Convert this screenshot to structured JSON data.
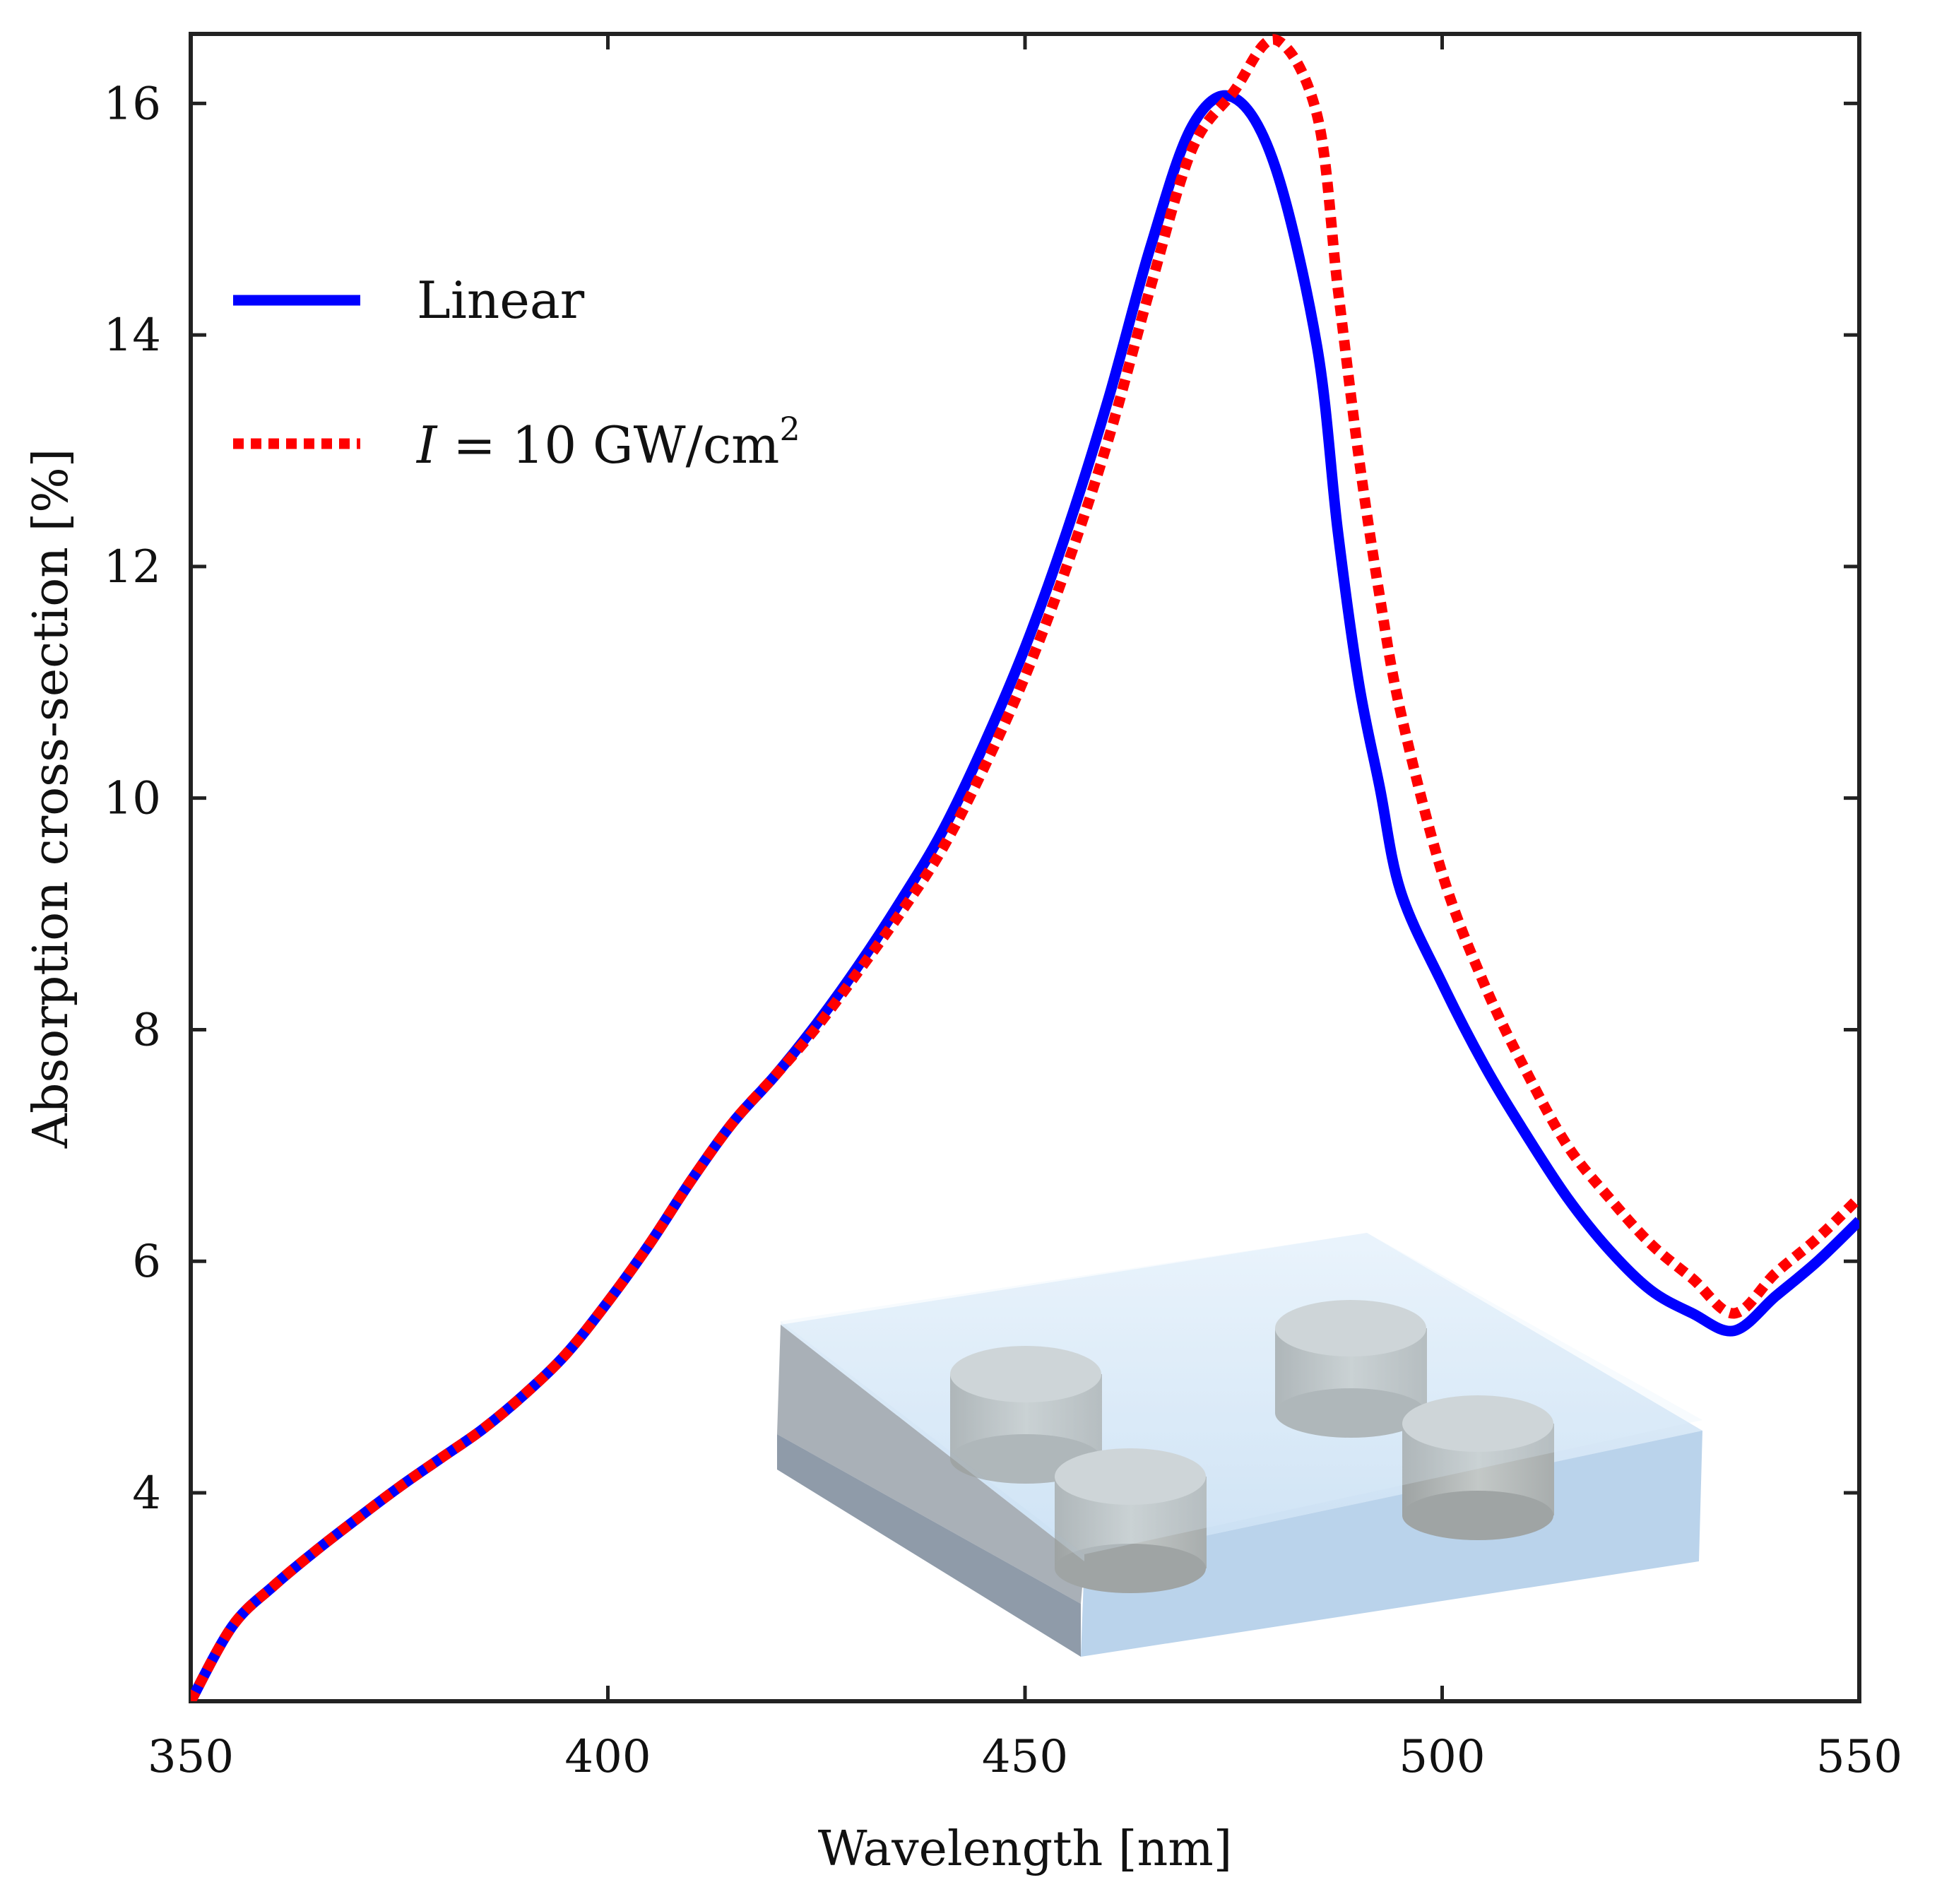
{
  "chart_data": {
    "type": "line",
    "title": "",
    "xlabel": "Wavelength [nm]",
    "ylabel": "Absorption cross-section [%]",
    "xlim": [
      350,
      550
    ],
    "ylim": [
      2.2,
      16.6
    ],
    "xticks": [
      350,
      400,
      450,
      500,
      550
    ],
    "yticks": [
      4,
      6,
      8,
      10,
      12,
      14,
      16
    ],
    "xtick_labels": [
      "350",
      "400",
      "450",
      "500",
      "550"
    ],
    "ytick_labels": [
      "4",
      "6",
      "8",
      "10",
      "12",
      "14",
      "16"
    ],
    "legend_position": "upper-left",
    "series": [
      {
        "name": "Linear",
        "color": "#0000ff",
        "style": "solid",
        "x": [
          350,
          355,
          360,
          365,
          370,
          375,
          380,
          385,
          390,
          395,
          400,
          405,
          410,
          415,
          420,
          425,
          430,
          435,
          440,
          445,
          450,
          455,
          460,
          465,
          470,
          475,
          480,
          485,
          487.5,
          490,
          492.5,
          495,
          500,
          505,
          510,
          515,
          520,
          525,
          530,
          535,
          540,
          545,
          550
        ],
        "y": [
          2.2,
          2.85,
          3.2,
          3.5,
          3.78,
          4.05,
          4.3,
          4.55,
          4.85,
          5.2,
          5.65,
          6.15,
          6.7,
          7.2,
          7.6,
          8.05,
          8.55,
          9.1,
          9.7,
          10.45,
          11.3,
          12.3,
          13.45,
          14.75,
          15.8,
          16.05,
          15.45,
          13.9,
          12.3,
          11.0,
          10.1,
          9.2,
          8.4,
          7.7,
          7.1,
          6.55,
          6.1,
          5.75,
          5.55,
          5.4,
          5.7,
          6.0,
          6.35
        ],
        "labels": [
          "Linear"
        ]
      },
      {
        "name": "I = 10 GW/cm2",
        "color": "#ff0000",
        "style": "dotted",
        "x": [
          350,
          355,
          360,
          365,
          370,
          375,
          380,
          385,
          390,
          395,
          400,
          405,
          410,
          415,
          420,
          425,
          430,
          435,
          440,
          445,
          450,
          455,
          460,
          465,
          470,
          475,
          480,
          485,
          487.5,
          490,
          492.5,
          495,
          500,
          505,
          510,
          515,
          520,
          525,
          530,
          535,
          540,
          545,
          550
        ],
        "y": [
          2.2,
          2.85,
          3.2,
          3.5,
          3.78,
          4.05,
          4.3,
          4.55,
          4.85,
          5.2,
          5.65,
          6.15,
          6.7,
          7.2,
          7.6,
          8.02,
          8.5,
          9.0,
          9.55,
          10.25,
          11.05,
          12.0,
          13.1,
          14.4,
          15.6,
          16.1,
          16.55,
          15.9,
          14.4,
          12.95,
          11.75,
          10.75,
          9.35,
          8.4,
          7.65,
          7.0,
          6.55,
          6.15,
          5.85,
          5.55,
          5.9,
          6.2,
          6.55
        ]
      }
    ]
  },
  "legend": {
    "linear_label": "Linear",
    "intensity_prefix": "I",
    "intensity_eq": " = 10 GW/cm",
    "intensity_exp": "2"
  }
}
